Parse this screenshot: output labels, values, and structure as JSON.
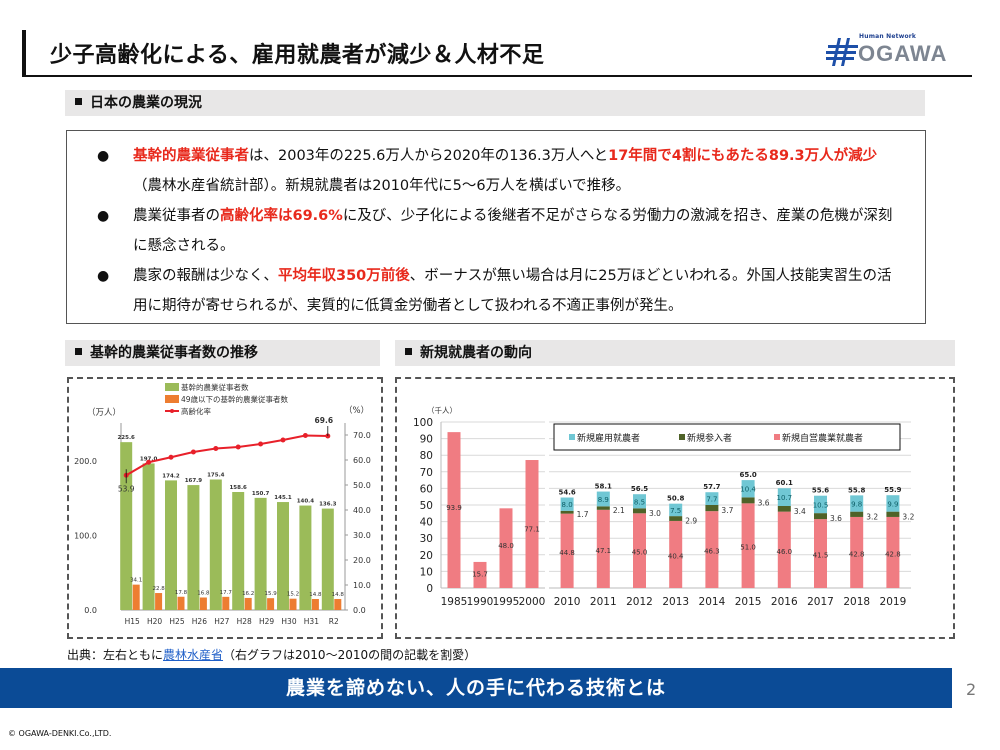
{
  "header": {
    "title": "少子高齢化による、雇用就農者が減少＆人材不足",
    "logo_tagline": "Human Network",
    "logo_brand": "OGAWA"
  },
  "section1": {
    "heading": "日本の農業の現況",
    "bullets": [
      {
        "parts": [
          {
            "text": "基幹的農業従事者",
            "highlight": true
          },
          {
            "text": "は、2003年の225.6万人から2020年の136.3万人へと",
            "highlight": false
          },
          {
            "text": "17年間で4割にもあたる89.3万人が減少",
            "highlight": true
          },
          {
            "text": "（農林水産省統計部）。新規就農者は2010年代に5～6万人を横ばいで推移。",
            "highlight": false
          }
        ]
      },
      {
        "parts": [
          {
            "text": "農業従事者の",
            "highlight": false
          },
          {
            "text": "高齢化率は69.6%",
            "highlight": true
          },
          {
            "text": "に及び、少子化による後継者不足がさらなる労働力の激減を招き、産業の危機が深刻に懸念される。",
            "highlight": false
          }
        ]
      },
      {
        "parts": [
          {
            "text": "農家の報酬は少なく、",
            "highlight": false
          },
          {
            "text": "平均年収350万前後",
            "highlight": true
          },
          {
            "text": "、ボーナスが無い場合は月に25万ほどといわれる。外国人技能実習生の活用に期待が寄せられるが、実質的に低賃金労働者として扱われる不適正事例が発生。",
            "highlight": false
          }
        ]
      }
    ]
  },
  "section2": {
    "heading": "基幹的農業従事者数の推移"
  },
  "section3": {
    "heading": "新規就農者の動向"
  },
  "chart_data": [
    {
      "type": "bar",
      "title": "基幹的農業従事者数の推移",
      "ylabel": "（万人）",
      "ylabel_right": "（%）",
      "ylim": [
        0,
        250
      ],
      "ylim_right": [
        0,
        80
      ],
      "yticks": [
        "0.0",
        "100.0",
        "200.0"
      ],
      "yticks_right": [
        "0.0",
        "10.0",
        "20.0",
        "30.0",
        "40.0",
        "50.0",
        "60.0",
        "70.0"
      ],
      "legend_position": "top-center",
      "categories": [
        "H15",
        "H20",
        "H25",
        "H26",
        "H27",
        "H28",
        "H29",
        "H30",
        "H31",
        "R2"
      ],
      "series": [
        {
          "name": "基幹的農業従事者数",
          "type": "bar",
          "axis": "left",
          "color": "#9bbb59",
          "values": [
            225.6,
            197.0,
            174.2,
            167.9,
            175.4,
            158.6,
            150.7,
            145.1,
            140.4,
            136.3
          ]
        },
        {
          "name": "49歳以下の基幹的農業従事者数",
          "type": "bar",
          "axis": "left",
          "color": "#ed7d31",
          "values": [
            34.1,
            22.8,
            17.8,
            16.8,
            17.7,
            16.2,
            15.9,
            15.2,
            14.8,
            14.8
          ]
        },
        {
          "name": "高齢化率",
          "type": "line",
          "axis": "right",
          "color": "#e8202a",
          "values": [
            53.9,
            59.1,
            61.1,
            63.2,
            64.6,
            65.2,
            66.4,
            68.0,
            69.8,
            69.6
          ],
          "labeled": {
            "0": "53.9",
            "9": "69.6"
          }
        }
      ]
    },
    {
      "type": "bar",
      "stacked": true,
      "title": "新規就農者の動向",
      "ylabel": "（千人）",
      "ylim": [
        0,
        100
      ],
      "yticks": [
        "0",
        "10",
        "20",
        "30",
        "40",
        "50",
        "60",
        "70",
        "80",
        "90",
        "100"
      ],
      "grid": true,
      "legend_position": "top-right",
      "groups": [
        {
          "categories": [
            "1985",
            "1990",
            "1995",
            "2000"
          ]
        },
        {
          "categories": [
            "2010",
            "2011",
            "2012",
            "2013",
            "2014",
            "2015",
            "2016",
            "2017",
            "2018",
            "2019"
          ]
        }
      ],
      "series": [
        {
          "name": "新規自営農業就農者",
          "color": "#f07c82",
          "values": [
            93.9,
            15.7,
            48.0,
            77.1,
            44.8,
            47.1,
            45.0,
            40.4,
            46.3,
            51.0,
            46.0,
            41.5,
            42.8,
            42.8
          ]
        },
        {
          "name": "新規参入者",
          "color": "#4f6228",
          "values": [
            null,
            null,
            null,
            null,
            1.7,
            2.1,
            3.0,
            2.9,
            3.7,
            3.6,
            3.4,
            3.6,
            3.2,
            3.2
          ]
        },
        {
          "name": "新規雇用就農者",
          "color": "#70c7d4",
          "values": [
            null,
            null,
            null,
            null,
            8.0,
            8.9,
            8.5,
            7.5,
            7.7,
            10.4,
            10.7,
            10.5,
            9.8,
            9.9
          ]
        }
      ],
      "totals": [
        null,
        null,
        null,
        null,
        54.6,
        58.1,
        56.5,
        50.8,
        57.7,
        65.0,
        60.1,
        55.6,
        55.8,
        55.9
      ]
    }
  ],
  "footer": {
    "source_prefix": "出典：左右ともに",
    "source_link": "農林水産省",
    "source_suffix": "（右グラフは2010～2010の間の記載を割愛）",
    "banner": "農業を諦めない、人の手に代わる技術とは",
    "page_number": "2",
    "copyright": "© OGAWA-DENKI.Co.,LTD."
  }
}
